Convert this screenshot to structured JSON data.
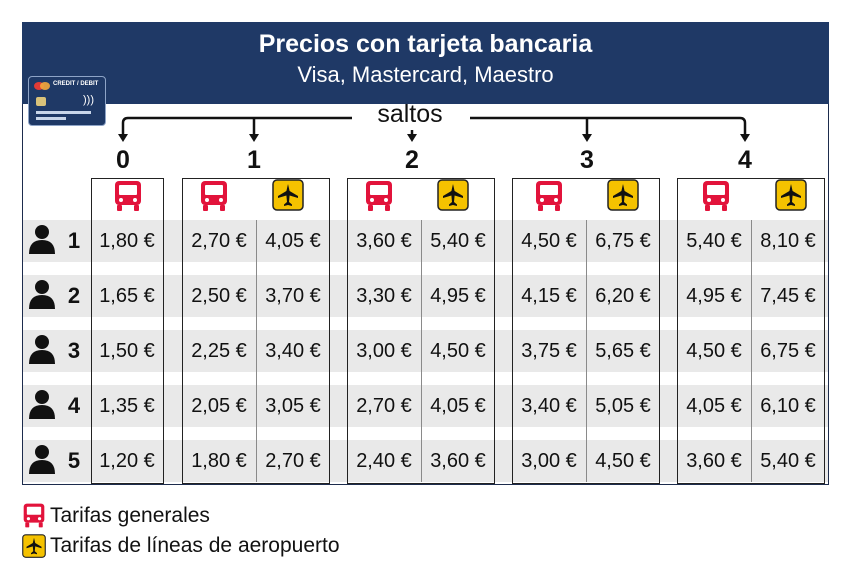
{
  "header": {
    "title": "Precios con tarjeta bancaria",
    "subtitle": "Visa, Mastercard, Maestro"
  },
  "card": {
    "label": "CREDIT / DEBIT",
    "icon": "credit-card-icon"
  },
  "saltos_label": "saltos",
  "zones": [
    "0",
    "1",
    "2",
    "3",
    "4"
  ],
  "rows": [
    {
      "persons": "1",
      "prices": [
        "1,80 €",
        "2,70 €",
        "4,05 €",
        "3,60 €",
        "5,40 €",
        "4,50 €",
        "6,75 €",
        "5,40 €",
        "8,10 €"
      ]
    },
    {
      "persons": "2",
      "prices": [
        "1,65 €",
        "2,50 €",
        "3,70 €",
        "3,30 €",
        "4,95 €",
        "4,15 €",
        "6,20 €",
        "4,95 €",
        "7,45 €"
      ]
    },
    {
      "persons": "3",
      "prices": [
        "1,50 €",
        "2,25 €",
        "3,40 €",
        "3,00 €",
        "4,50 €",
        "3,75 €",
        "5,65 €",
        "4,50 €",
        "6,75 €"
      ]
    },
    {
      "persons": "4",
      "prices": [
        "1,35 €",
        "2,05 €",
        "3,05 €",
        "2,70 €",
        "4,05 €",
        "3,40 €",
        "5,05 €",
        "4,05 €",
        "6,10 €"
      ]
    },
    {
      "persons": "5",
      "prices": [
        "1,20 €",
        "1,80 €",
        "2,70 €",
        "2,40 €",
        "3,60 €",
        "3,00 €",
        "4,50 €",
        "3,60 €",
        "5,40 €"
      ]
    }
  ],
  "legend": {
    "general": "Tarifas generales",
    "airport": "Tarifas de líneas de aeropuerto"
  },
  "colors": {
    "header_bg": "#1f3966",
    "bus": "#e2133b",
    "plane_bg": "#f5c200",
    "row_band": "#e9e9e9"
  }
}
